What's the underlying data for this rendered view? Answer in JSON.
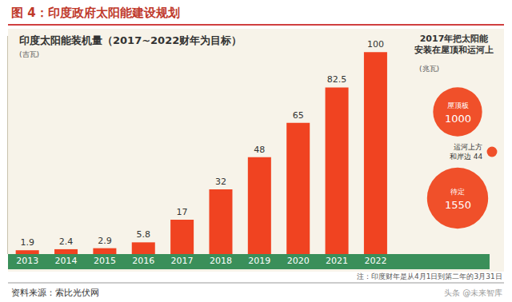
{
  "header": "图 4：印度政府太阳能建设规划",
  "source": "资料来源：索比光伏网",
  "watermark": "头条 @未来智库",
  "chart_data": [
    {
      "type": "bar",
      "title": "印度太阳能装机量（2017~2022财年为目标）",
      "ylabel": "(吉瓦)",
      "categories": [
        "2013",
        "2014",
        "2015",
        "2016",
        "2017",
        "2018",
        "2019",
        "2020",
        "2021",
        "2022"
      ],
      "values": [
        1.9,
        2.4,
        2.9,
        5.8,
        17,
        32,
        48,
        65,
        82.5,
        100
      ],
      "color": "#f04321",
      "ylim": [
        0,
        108
      ],
      "yticks": [],
      "grid": false,
      "data_labels": true,
      "tick_labels": "x",
      "annotations": [
        "注：印度财年是从4月1日到第二年的3月31日"
      ]
    },
    {
      "type": "bubble",
      "title": "2017年把太阳能\n安装在屋顶和运河上",
      "subtitle": "(兆瓦)",
      "categories": [
        "屋顶板",
        "运河上方\n和岸边",
        "待定"
      ],
      "values": [
        1000,
        44,
        1550
      ],
      "color": "#f0502a",
      "data_labels": true
    }
  ]
}
